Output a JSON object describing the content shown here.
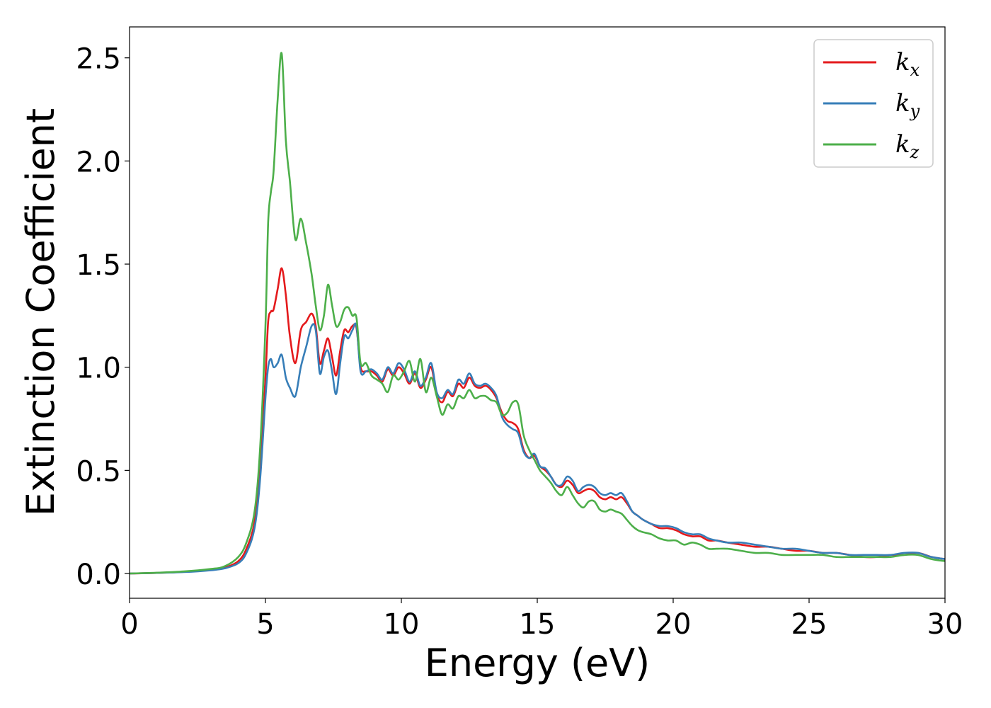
{
  "chart_data": {
    "type": "line",
    "title": "",
    "xlabel": "Energy (eV)",
    "ylabel": "Extinction Coefficient",
    "xlim": [
      0,
      30
    ],
    "ylim": [
      -0.12,
      2.65
    ],
    "xticks": [
      "0",
      "5",
      "10",
      "15",
      "20",
      "25",
      "30"
    ],
    "yticks": [
      "0.0",
      "0.5",
      "1.0",
      "1.5",
      "2.0",
      "2.5"
    ],
    "grid": false,
    "legend_position": "top-right",
    "series": [
      {
        "name": "k_x",
        "label_main": "k",
        "label_sub": "x",
        "color": "#e41a1c",
        "x": [
          0,
          1,
          2,
          3,
          3.5,
          4,
          4.3,
          4.6,
          4.8,
          5.0,
          5.1,
          5.2,
          5.3,
          5.45,
          5.6,
          5.75,
          5.9,
          6.1,
          6.3,
          6.5,
          6.7,
          6.85,
          7.0,
          7.15,
          7.3,
          7.45,
          7.6,
          7.75,
          7.9,
          8.05,
          8.2,
          8.35,
          8.5,
          8.7,
          8.9,
          9.1,
          9.3,
          9.5,
          9.7,
          9.9,
          10.1,
          10.3,
          10.5,
          10.7,
          10.9,
          11.1,
          11.3,
          11.5,
          11.7,
          11.9,
          12.1,
          12.3,
          12.5,
          12.7,
          12.9,
          13.1,
          13.3,
          13.5,
          13.7,
          13.9,
          14.1,
          14.3,
          14.5,
          14.7,
          14.9,
          15.1,
          15.3,
          15.5,
          15.7,
          15.9,
          16.1,
          16.3,
          16.5,
          16.7,
          16.9,
          17.1,
          17.3,
          17.5,
          17.7,
          17.9,
          18.1,
          18.3,
          18.5,
          18.7,
          18.9,
          19.2,
          19.5,
          19.8,
          20.1,
          20.4,
          20.7,
          21.0,
          21.3,
          21.6,
          22.0,
          22.5,
          23.0,
          23.5,
          24.0,
          24.5,
          25.0,
          25.5,
          26.0,
          26.5,
          27.0,
          27.5,
          28.0,
          28.5,
          29.0,
          29.5,
          30.0
        ],
        "y": [
          0,
          0.003,
          0.008,
          0.018,
          0.028,
          0.06,
          0.12,
          0.25,
          0.5,
          0.95,
          1.22,
          1.27,
          1.28,
          1.38,
          1.48,
          1.35,
          1.15,
          1.02,
          1.18,
          1.22,
          1.26,
          1.2,
          1.02,
          1.08,
          1.14,
          1.05,
          0.96,
          1.08,
          1.18,
          1.17,
          1.2,
          1.19,
          1.0,
          0.98,
          0.98,
          0.96,
          0.93,
          0.99,
          0.96,
          1.0,
          0.97,
          0.92,
          0.97,
          0.9,
          0.94,
          1.0,
          0.87,
          0.83,
          0.88,
          0.86,
          0.92,
          0.9,
          0.95,
          0.91,
          0.9,
          0.91,
          0.89,
          0.85,
          0.78,
          0.74,
          0.73,
          0.7,
          0.6,
          0.56,
          0.57,
          0.52,
          0.5,
          0.47,
          0.43,
          0.42,
          0.45,
          0.43,
          0.39,
          0.4,
          0.41,
          0.4,
          0.37,
          0.36,
          0.37,
          0.36,
          0.37,
          0.34,
          0.3,
          0.28,
          0.26,
          0.24,
          0.22,
          0.22,
          0.21,
          0.19,
          0.18,
          0.18,
          0.16,
          0.16,
          0.15,
          0.14,
          0.13,
          0.13,
          0.12,
          0.11,
          0.11,
          0.1,
          0.1,
          0.09,
          0.08,
          0.08,
          0.09,
          0.09,
          0.1,
          0.08,
          0.07
        ]
      },
      {
        "name": "k_y",
        "label_main": "k",
        "label_sub": "y",
        "color": "#377eb8",
        "x": [
          0,
          1,
          2,
          3,
          3.5,
          4,
          4.3,
          4.6,
          4.8,
          5.0,
          5.1,
          5.2,
          5.3,
          5.45,
          5.6,
          5.75,
          5.9,
          6.1,
          6.3,
          6.5,
          6.7,
          6.85,
          7.0,
          7.15,
          7.3,
          7.45,
          7.6,
          7.75,
          7.9,
          8.05,
          8.2,
          8.35,
          8.5,
          8.7,
          8.9,
          9.1,
          9.3,
          9.5,
          9.7,
          9.9,
          10.1,
          10.3,
          10.5,
          10.7,
          10.9,
          11.1,
          11.3,
          11.5,
          11.7,
          11.9,
          12.1,
          12.3,
          12.5,
          12.7,
          12.9,
          13.1,
          13.3,
          13.5,
          13.7,
          13.9,
          14.1,
          14.3,
          14.5,
          14.7,
          14.9,
          15.1,
          15.3,
          15.5,
          15.7,
          15.9,
          16.1,
          16.3,
          16.5,
          16.7,
          16.9,
          17.1,
          17.3,
          17.5,
          17.7,
          17.9,
          18.1,
          18.3,
          18.5,
          18.7,
          18.9,
          19.2,
          19.5,
          19.8,
          20.1,
          20.4,
          20.7,
          21.0,
          21.3,
          21.6,
          22.0,
          22.5,
          23.0,
          23.5,
          24.0,
          24.5,
          25.0,
          25.5,
          26.0,
          26.5,
          27.0,
          27.5,
          28.0,
          28.5,
          29.0,
          29.5,
          30.0
        ],
        "y": [
          0,
          0.003,
          0.007,
          0.016,
          0.025,
          0.05,
          0.1,
          0.22,
          0.45,
          0.85,
          1.0,
          1.04,
          1.0,
          1.02,
          1.06,
          0.95,
          0.9,
          0.86,
          1.0,
          1.1,
          1.2,
          1.18,
          0.97,
          1.05,
          1.08,
          0.98,
          0.87,
          1.02,
          1.15,
          1.14,
          1.18,
          1.2,
          0.98,
          0.98,
          0.99,
          0.97,
          0.94,
          1.0,
          0.97,
          1.02,
          0.99,
          0.93,
          0.98,
          0.91,
          0.95,
          1.02,
          0.88,
          0.85,
          0.89,
          0.87,
          0.94,
          0.92,
          0.97,
          0.92,
          0.91,
          0.92,
          0.9,
          0.86,
          0.76,
          0.72,
          0.7,
          0.68,
          0.59,
          0.56,
          0.58,
          0.52,
          0.51,
          0.47,
          0.43,
          0.43,
          0.47,
          0.45,
          0.4,
          0.42,
          0.43,
          0.42,
          0.39,
          0.38,
          0.39,
          0.38,
          0.39,
          0.35,
          0.3,
          0.28,
          0.26,
          0.24,
          0.23,
          0.23,
          0.22,
          0.2,
          0.19,
          0.19,
          0.17,
          0.16,
          0.15,
          0.15,
          0.14,
          0.13,
          0.12,
          0.12,
          0.11,
          0.1,
          0.1,
          0.09,
          0.09,
          0.09,
          0.09,
          0.1,
          0.1,
          0.08,
          0.07
        ]
      },
      {
        "name": "k_z",
        "label_main": "k",
        "label_sub": "z",
        "color": "#4daf4a",
        "x": [
          0,
          1,
          2,
          3,
          3.5,
          4,
          4.3,
          4.6,
          4.8,
          5.0,
          5.1,
          5.2,
          5.3,
          5.45,
          5.6,
          5.75,
          5.9,
          6.1,
          6.3,
          6.5,
          6.7,
          6.85,
          7.0,
          7.15,
          7.3,
          7.45,
          7.6,
          7.75,
          7.9,
          8.05,
          8.2,
          8.35,
          8.5,
          8.7,
          8.9,
          9.1,
          9.3,
          9.5,
          9.7,
          9.9,
          10.1,
          10.3,
          10.5,
          10.7,
          10.9,
          11.1,
          11.3,
          11.5,
          11.7,
          11.9,
          12.1,
          12.3,
          12.5,
          12.7,
          12.9,
          13.1,
          13.3,
          13.5,
          13.7,
          13.9,
          14.1,
          14.3,
          14.5,
          14.7,
          14.9,
          15.1,
          15.3,
          15.5,
          15.7,
          15.9,
          16.1,
          16.3,
          16.5,
          16.7,
          16.9,
          17.1,
          17.3,
          17.5,
          17.7,
          17.9,
          18.1,
          18.3,
          18.5,
          18.7,
          18.9,
          19.2,
          19.5,
          19.8,
          20.1,
          20.4,
          20.7,
          21.0,
          21.3,
          21.6,
          22.0,
          22.5,
          23.0,
          23.5,
          24.0,
          24.5,
          25.0,
          25.5,
          26.0,
          26.5,
          27.0,
          27.5,
          28.0,
          28.5,
          29.0,
          29.5,
          30.0
        ],
        "y": [
          0,
          0.004,
          0.01,
          0.022,
          0.035,
          0.08,
          0.15,
          0.3,
          0.6,
          1.2,
          1.7,
          1.85,
          1.95,
          2.3,
          2.52,
          2.1,
          1.9,
          1.62,
          1.72,
          1.6,
          1.45,
          1.3,
          1.18,
          1.25,
          1.4,
          1.3,
          1.2,
          1.22,
          1.28,
          1.29,
          1.25,
          1.24,
          1.02,
          1.02,
          0.96,
          0.94,
          0.92,
          0.88,
          0.96,
          0.94,
          0.98,
          1.03,
          0.93,
          1.04,
          0.88,
          0.95,
          0.86,
          0.77,
          0.82,
          0.8,
          0.86,
          0.85,
          0.89,
          0.85,
          0.86,
          0.86,
          0.84,
          0.83,
          0.77,
          0.78,
          0.83,
          0.82,
          0.67,
          0.6,
          0.55,
          0.5,
          0.47,
          0.44,
          0.4,
          0.38,
          0.42,
          0.38,
          0.34,
          0.32,
          0.35,
          0.35,
          0.31,
          0.3,
          0.31,
          0.3,
          0.29,
          0.26,
          0.23,
          0.21,
          0.2,
          0.19,
          0.17,
          0.16,
          0.16,
          0.14,
          0.15,
          0.14,
          0.12,
          0.12,
          0.12,
          0.11,
          0.1,
          0.1,
          0.09,
          0.09,
          0.09,
          0.09,
          0.08,
          0.08,
          0.08,
          0.08,
          0.08,
          0.09,
          0.09,
          0.07,
          0.06
        ]
      }
    ]
  }
}
